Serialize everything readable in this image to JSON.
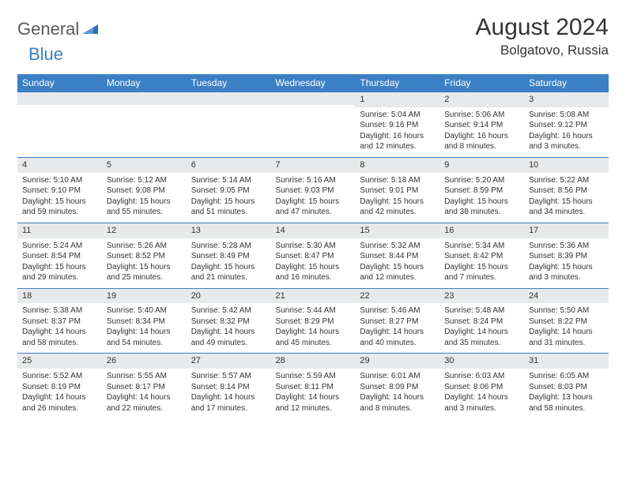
{
  "brand": {
    "general": "General",
    "blue": "Blue"
  },
  "title": "August 2024",
  "location": "Bolgatovo, Russia",
  "colors": {
    "header_bg": "#3b7fc4",
    "header_text": "#ffffff",
    "daynum_bg": "#e8e9ea",
    "border": "#3b7fc4",
    "page_bg": "#ffffff",
    "text": "#333333",
    "logo_general": "#5a5a5a",
    "logo_blue": "#3b7fc4"
  },
  "day_headers": [
    "Sunday",
    "Monday",
    "Tuesday",
    "Wednesday",
    "Thursday",
    "Friday",
    "Saturday"
  ],
  "weeks": [
    [
      {
        "day": "",
        "sunrise": "",
        "sunset": "",
        "daylight": ""
      },
      {
        "day": "",
        "sunrise": "",
        "sunset": "",
        "daylight": ""
      },
      {
        "day": "",
        "sunrise": "",
        "sunset": "",
        "daylight": ""
      },
      {
        "day": "",
        "sunrise": "",
        "sunset": "",
        "daylight": ""
      },
      {
        "day": "1",
        "sunrise": "Sunrise: 5:04 AM",
        "sunset": "Sunset: 9:16 PM",
        "daylight": "Daylight: 16 hours and 12 minutes."
      },
      {
        "day": "2",
        "sunrise": "Sunrise: 5:06 AM",
        "sunset": "Sunset: 9:14 PM",
        "daylight": "Daylight: 16 hours and 8 minutes."
      },
      {
        "day": "3",
        "sunrise": "Sunrise: 5:08 AM",
        "sunset": "Sunset: 9:12 PM",
        "daylight": "Daylight: 16 hours and 3 minutes."
      }
    ],
    [
      {
        "day": "4",
        "sunrise": "Sunrise: 5:10 AM",
        "sunset": "Sunset: 9:10 PM",
        "daylight": "Daylight: 15 hours and 59 minutes."
      },
      {
        "day": "5",
        "sunrise": "Sunrise: 5:12 AM",
        "sunset": "Sunset: 9:08 PM",
        "daylight": "Daylight: 15 hours and 55 minutes."
      },
      {
        "day": "6",
        "sunrise": "Sunrise: 5:14 AM",
        "sunset": "Sunset: 9:05 PM",
        "daylight": "Daylight: 15 hours and 51 minutes."
      },
      {
        "day": "7",
        "sunrise": "Sunrise: 5:16 AM",
        "sunset": "Sunset: 9:03 PM",
        "daylight": "Daylight: 15 hours and 47 minutes."
      },
      {
        "day": "8",
        "sunrise": "Sunrise: 5:18 AM",
        "sunset": "Sunset: 9:01 PM",
        "daylight": "Daylight: 15 hours and 42 minutes."
      },
      {
        "day": "9",
        "sunrise": "Sunrise: 5:20 AM",
        "sunset": "Sunset: 8:59 PM",
        "daylight": "Daylight: 15 hours and 38 minutes."
      },
      {
        "day": "10",
        "sunrise": "Sunrise: 5:22 AM",
        "sunset": "Sunset: 8:56 PM",
        "daylight": "Daylight: 15 hours and 34 minutes."
      }
    ],
    [
      {
        "day": "11",
        "sunrise": "Sunrise: 5:24 AM",
        "sunset": "Sunset: 8:54 PM",
        "daylight": "Daylight: 15 hours and 29 minutes."
      },
      {
        "day": "12",
        "sunrise": "Sunrise: 5:26 AM",
        "sunset": "Sunset: 8:52 PM",
        "daylight": "Daylight: 15 hours and 25 minutes."
      },
      {
        "day": "13",
        "sunrise": "Sunrise: 5:28 AM",
        "sunset": "Sunset: 8:49 PM",
        "daylight": "Daylight: 15 hours and 21 minutes."
      },
      {
        "day": "14",
        "sunrise": "Sunrise: 5:30 AM",
        "sunset": "Sunset: 8:47 PM",
        "daylight": "Daylight: 15 hours and 16 minutes."
      },
      {
        "day": "15",
        "sunrise": "Sunrise: 5:32 AM",
        "sunset": "Sunset: 8:44 PM",
        "daylight": "Daylight: 15 hours and 12 minutes."
      },
      {
        "day": "16",
        "sunrise": "Sunrise: 5:34 AM",
        "sunset": "Sunset: 8:42 PM",
        "daylight": "Daylight: 15 hours and 7 minutes."
      },
      {
        "day": "17",
        "sunrise": "Sunrise: 5:36 AM",
        "sunset": "Sunset: 8:39 PM",
        "daylight": "Daylight: 15 hours and 3 minutes."
      }
    ],
    [
      {
        "day": "18",
        "sunrise": "Sunrise: 5:38 AM",
        "sunset": "Sunset: 8:37 PM",
        "daylight": "Daylight: 14 hours and 58 minutes."
      },
      {
        "day": "19",
        "sunrise": "Sunrise: 5:40 AM",
        "sunset": "Sunset: 8:34 PM",
        "daylight": "Daylight: 14 hours and 54 minutes."
      },
      {
        "day": "20",
        "sunrise": "Sunrise: 5:42 AM",
        "sunset": "Sunset: 8:32 PM",
        "daylight": "Daylight: 14 hours and 49 minutes."
      },
      {
        "day": "21",
        "sunrise": "Sunrise: 5:44 AM",
        "sunset": "Sunset: 8:29 PM",
        "daylight": "Daylight: 14 hours and 45 minutes."
      },
      {
        "day": "22",
        "sunrise": "Sunrise: 5:46 AM",
        "sunset": "Sunset: 8:27 PM",
        "daylight": "Daylight: 14 hours and 40 minutes."
      },
      {
        "day": "23",
        "sunrise": "Sunrise: 5:48 AM",
        "sunset": "Sunset: 8:24 PM",
        "daylight": "Daylight: 14 hours and 35 minutes."
      },
      {
        "day": "24",
        "sunrise": "Sunrise: 5:50 AM",
        "sunset": "Sunset: 8:22 PM",
        "daylight": "Daylight: 14 hours and 31 minutes."
      }
    ],
    [
      {
        "day": "25",
        "sunrise": "Sunrise: 5:52 AM",
        "sunset": "Sunset: 8:19 PM",
        "daylight": "Daylight: 14 hours and 26 minutes."
      },
      {
        "day": "26",
        "sunrise": "Sunrise: 5:55 AM",
        "sunset": "Sunset: 8:17 PM",
        "daylight": "Daylight: 14 hours and 22 minutes."
      },
      {
        "day": "27",
        "sunrise": "Sunrise: 5:57 AM",
        "sunset": "Sunset: 8:14 PM",
        "daylight": "Daylight: 14 hours and 17 minutes."
      },
      {
        "day": "28",
        "sunrise": "Sunrise: 5:59 AM",
        "sunset": "Sunset: 8:11 PM",
        "daylight": "Daylight: 14 hours and 12 minutes."
      },
      {
        "day": "29",
        "sunrise": "Sunrise: 6:01 AM",
        "sunset": "Sunset: 8:09 PM",
        "daylight": "Daylight: 14 hours and 8 minutes."
      },
      {
        "day": "30",
        "sunrise": "Sunrise: 6:03 AM",
        "sunset": "Sunset: 8:06 PM",
        "daylight": "Daylight: 14 hours and 3 minutes."
      },
      {
        "day": "31",
        "sunrise": "Sunrise: 6:05 AM",
        "sunset": "Sunset: 8:03 PM",
        "daylight": "Daylight: 13 hours and 58 minutes."
      }
    ]
  ]
}
